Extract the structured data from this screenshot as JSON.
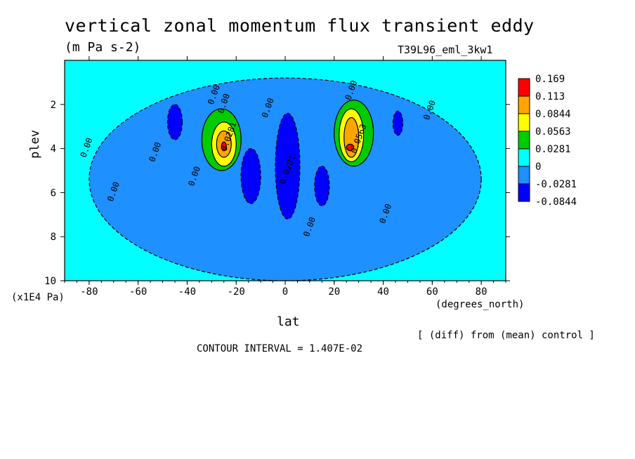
{
  "chart_data": {
    "type": "contour",
    "title": "vertical zonal momentum flux transient eddy",
    "units": "(m Pa s-2)",
    "run_id": "T39L96_eml_3kw1",
    "xlabel": "lat",
    "x_units": "(degrees_north)",
    "ylabel": "plev",
    "y_units": "(x1E4 Pa)",
    "note": "[ (diff) from (mean) control ]",
    "contour_interval_text": "CONTOUR INTERVAL = 1.407E-02",
    "xlim": [
      -90,
      90
    ],
    "ylim": [
      10,
      0
    ],
    "x_ticks": [
      -80,
      -60,
      -40,
      -20,
      0,
      20,
      40,
      60,
      80
    ],
    "y_ticks": [
      2,
      4,
      6,
      8,
      10
    ],
    "colorbar": {
      "levels": [
        "0.169",
        "0.113",
        "0.0844",
        "0.0563",
        "0.0281",
        "0",
        "-0.0281",
        "-0.0844"
      ],
      "colors": [
        "#ff0000",
        "#ffa500",
        "#ffff00",
        "#00cc00",
        "#00ffff",
        "#1e90ff",
        "#0000ff"
      ]
    },
    "contour_labels": [
      {
        "text": "0.00",
        "lat": -28,
        "plev": 1.6
      },
      {
        "text": "0.00",
        "lat": -24,
        "plev": 2.0
      },
      {
        "text": "0.0281",
        "lat": -22,
        "plev": 3.5
      },
      {
        "text": "0.00",
        "lat": 28,
        "plev": 1.4
      },
      {
        "text": "0.0563",
        "lat": 31,
        "plev": 3.6
      },
      {
        "text": "0.00",
        "lat": -6,
        "plev": 2.2
      },
      {
        "text": "0.00",
        "lat": 60,
        "plev": 2.3
      },
      {
        "text": "0.00",
        "lat": -80,
        "plev": 4.0
      },
      {
        "text": "0.00",
        "lat": -52,
        "plev": 4.2
      },
      {
        "text": "0.00",
        "lat": -36,
        "plev": 5.3
      },
      {
        "text": "0.0281",
        "lat": 2,
        "plev": 5.0
      },
      {
        "text": "0.00",
        "lat": -69,
        "plev": 6.0
      },
      {
        "text": "0.00",
        "lat": 42,
        "plev": 7.0
      },
      {
        "text": "0.00",
        "lat": 11,
        "plev": 7.6
      }
    ],
    "regions": [
      {
        "fill": "#1e90ff",
        "lat": [
          -80,
          80
        ],
        "plev": [
          0.8,
          10
        ],
        "shape": "broad background band"
      },
      {
        "fill": "#0000ff",
        "lat": [
          -48,
          -42
        ],
        "plev": [
          2.0,
          3.6
        ]
      },
      {
        "fill": "#0000ff",
        "lat": [
          -18,
          -10
        ],
        "plev": [
          4.0,
          6.5
        ]
      },
      {
        "fill": "#0000ff",
        "lat": [
          -4,
          6
        ],
        "plev": [
          2.4,
          7.2
        ]
      },
      {
        "fill": "#0000ff",
        "lat": [
          12,
          18
        ],
        "plev": [
          4.8,
          6.6
        ]
      },
      {
        "fill": "#0000ff",
        "lat": [
          44,
          48
        ],
        "plev": [
          2.3,
          3.4
        ]
      },
      {
        "fill": "#00cc00",
        "lat": [
          -34,
          -18
        ],
        "plev": [
          2.2,
          5.0
        ]
      },
      {
        "fill": "#ffff00",
        "lat": [
          -30,
          -20
        ],
        "plev": [
          2.8,
          4.8
        ]
      },
      {
        "fill": "#ffa500",
        "lat": [
          -28,
          -22
        ],
        "plev": [
          3.2,
          4.4
        ]
      },
      {
        "fill": "#ff0000",
        "lat": [
          -26,
          -24
        ],
        "plev": [
          3.7,
          4.1
        ]
      },
      {
        "fill": "#00cc00",
        "lat": [
          20,
          36
        ],
        "plev": [
          1.8,
          4.8
        ]
      },
      {
        "fill": "#ffff00",
        "lat": [
          22,
          32
        ],
        "plev": [
          2.2,
          4.6
        ]
      },
      {
        "fill": "#ffa500",
        "lat": [
          24,
          30
        ],
        "plev": [
          2.6,
          4.4
        ]
      },
      {
        "fill": "#ff0000",
        "lat": [
          25,
          28
        ],
        "plev": [
          3.8,
          4.1
        ]
      }
    ]
  }
}
